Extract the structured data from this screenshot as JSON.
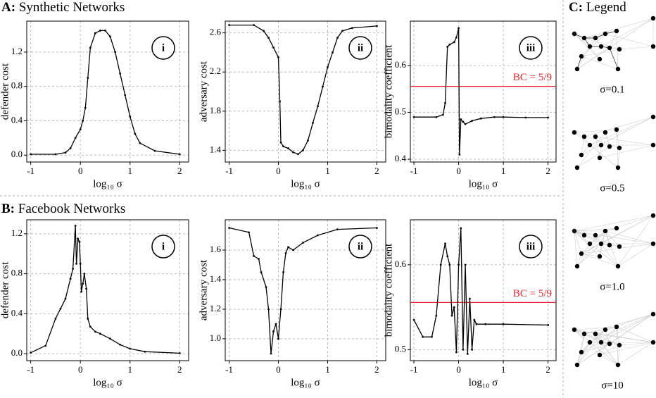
{
  "sections": [
    {
      "label": "A:",
      "title": "Synthetic Networks"
    },
    {
      "label": "B:",
      "title": "Facebook Networks"
    },
    {
      "label": "C:",
      "title": "Legend"
    }
  ],
  "legend": {
    "items": [
      "σ=0.1",
      "σ=0.5",
      "σ=1.0",
      "σ=10"
    ]
  },
  "chart_data": [
    {
      "type": "line",
      "panel_label": "i",
      "xlabel": "log₁₀ σ",
      "ylabel": "defender cost",
      "xlim": [
        -1.08,
        2.18
      ],
      "ylim": [
        -0.08,
        1.56
      ],
      "xticks": [
        -1,
        0,
        1,
        2
      ],
      "yticks": [
        {
          "value": 0,
          "label": "0.0"
        },
        0.4,
        0.8,
        1.2
      ],
      "grid": true,
      "x": [
        -1,
        -0.5,
        -0.3,
        -0.2,
        -0.1,
        0,
        0.05,
        0.1,
        0.15,
        0.2,
        0.3,
        0.4,
        0.5,
        0.6,
        0.7,
        0.8,
        0.9,
        1.0,
        1.1,
        1.2,
        1.5,
        2
      ],
      "series": [
        {
          "color": "#000000",
          "values": [
            0.01,
            0.01,
            0.03,
            0.08,
            0.2,
            0.3,
            0.4,
            0.55,
            0.9,
            1.25,
            1.42,
            1.45,
            1.45,
            1.38,
            1.2,
            0.95,
            0.7,
            0.45,
            0.25,
            0.14,
            0.05,
            0.01
          ]
        }
      ]
    },
    {
      "type": "line",
      "panel_label": "ii",
      "xlabel": "log₁₀ σ",
      "ylabel": "adversary cost",
      "xlim": [
        -1.08,
        2.18
      ],
      "ylim": [
        1.28,
        2.72
      ],
      "xticks": [
        -1,
        0,
        1,
        2
      ],
      "yticks": [
        1.4,
        1.8,
        2.2,
        2.6
      ],
      "grid": true,
      "x": [
        -1,
        -0.5,
        -0.3,
        -0.2,
        -0.1,
        0,
        0.03,
        0.05,
        0.1,
        0.2,
        0.3,
        0.4,
        0.5,
        0.6,
        0.7,
        0.8,
        0.9,
        1.0,
        1.1,
        1.2,
        1.3,
        1.5,
        2
      ],
      "series": [
        {
          "color": "#000000",
          "values": [
            2.68,
            2.68,
            2.62,
            2.55,
            2.45,
            2.35,
            1.9,
            1.48,
            1.44,
            1.42,
            1.38,
            1.36,
            1.4,
            1.5,
            1.68,
            1.85,
            2.05,
            2.25,
            2.4,
            2.55,
            2.62,
            2.65,
            2.67
          ]
        }
      ]
    },
    {
      "type": "line",
      "panel_label": "iii",
      "xlabel": "log₁₀ σ",
      "ylabel": "bimodality coefficient",
      "xlim": [
        -1.08,
        2.18
      ],
      "ylim": [
        0.394,
        0.695
      ],
      "xticks": [
        -1,
        0,
        1,
        2
      ],
      "yticks": [
        0.4,
        0.5,
        0.6
      ],
      "grid": true,
      "hline": {
        "value": 0.5556,
        "label": "BC = 5/9",
        "color": "#e8222a"
      },
      "x": [
        -1,
        -0.5,
        -0.35,
        -0.3,
        -0.25,
        -0.2,
        -0.1,
        -0.05,
        0,
        0.02,
        0.05,
        0.1,
        0.15,
        0.3,
        0.5,
        0.8,
        1.0,
        1.5,
        2
      ],
      "series": [
        {
          "color": "#000000",
          "values": [
            0.49,
            0.49,
            0.495,
            0.52,
            0.64,
            0.645,
            0.65,
            0.66,
            0.68,
            0.41,
            0.485,
            0.48,
            0.475,
            0.482,
            0.487,
            0.49,
            0.49,
            0.489,
            0.489
          ]
        }
      ]
    },
    {
      "type": "line",
      "panel_label": "i",
      "xlabel": "log₁₀ σ",
      "ylabel": "defender cost",
      "xlim": [
        -1.08,
        2.18
      ],
      "ylim": [
        -0.07,
        1.34
      ],
      "xticks": [
        -1,
        0,
        1,
        2
      ],
      "yticks": [
        {
          "value": 0,
          "label": "0.0"
        },
        0.4,
        0.8,
        1.2
      ],
      "grid": true,
      "x": [
        -1,
        -0.7,
        -0.5,
        -0.4,
        -0.3,
        -0.2,
        -0.15,
        -0.1,
        -0.08,
        -0.05,
        -0.02,
        0,
        0.02,
        0.05,
        0.08,
        0.12,
        0.15,
        0.2,
        0.3,
        0.4,
        0.6,
        0.8,
        1.0,
        1.3,
        2
      ],
      "series": [
        {
          "color": "#000000",
          "values": [
            0.01,
            0.08,
            0.35,
            0.45,
            0.55,
            0.75,
            0.85,
            1.28,
            0.9,
            1.15,
            1.12,
            0.9,
            0.62,
            0.7,
            0.8,
            0.65,
            0.35,
            0.27,
            0.22,
            0.2,
            0.15,
            0.09,
            0.05,
            0.02,
            0.005
          ]
        }
      ]
    },
    {
      "type": "line",
      "panel_label": "ii",
      "xlabel": "log₁₀ σ",
      "ylabel": "adversary cost",
      "xlim": [
        -1.08,
        2.18
      ],
      "ylim": [
        0.852,
        1.805
      ],
      "xticks": [
        -1,
        0,
        1,
        2
      ],
      "yticks": [
        {
          "value": 1,
          "label": "1.0"
        },
        1.2,
        1.4,
        1.6
      ],
      "grid": true,
      "x": [
        -1,
        -0.6,
        -0.5,
        -0.4,
        -0.35,
        -0.25,
        -0.2,
        -0.15,
        -0.1,
        -0.05,
        0,
        0.05,
        0.1,
        0.15,
        0.2,
        0.3,
        0.5,
        0.8,
        1.2,
        2
      ],
      "series": [
        {
          "color": "#000000",
          "values": [
            1.75,
            1.72,
            1.56,
            1.54,
            1.45,
            1.35,
            1.2,
            0.9,
            1.05,
            1.1,
            1.0,
            1.2,
            1.45,
            1.58,
            1.62,
            1.6,
            1.65,
            1.7,
            1.74,
            1.75
          ]
        }
      ]
    },
    {
      "type": "line",
      "panel_label": "iii",
      "xlabel": "log₁₀ σ",
      "ylabel": "bimodality coefficient",
      "xlim": [
        -1.08,
        2.18
      ],
      "ylim": [
        0.487,
        0.653
      ],
      "xticks": [
        -1,
        0,
        1,
        2
      ],
      "yticks": [
        0.5,
        0.6
      ],
      "grid": true,
      "hline": {
        "value": 0.5556,
        "label": "BC = 5/9",
        "color": "#e8222a"
      },
      "x": [
        -1,
        -0.8,
        -0.6,
        -0.5,
        -0.4,
        -0.3,
        -0.25,
        -0.2,
        -0.15,
        -0.1,
        -0.05,
        0,
        0.05,
        0.1,
        0.15,
        0.2,
        0.25,
        0.3,
        0.35,
        0.4,
        0.6,
        1,
        2
      ],
      "series": [
        {
          "color": "#000000",
          "values": [
            0.535,
            0.515,
            0.515,
            0.54,
            0.6,
            0.625,
            0.61,
            0.6,
            0.54,
            0.55,
            0.497,
            0.6,
            0.643,
            0.5,
            0.6,
            0.495,
            0.56,
            0.5,
            0.535,
            0.53,
            0.53,
            0.53,
            0.529
          ]
        }
      ]
    }
  ]
}
